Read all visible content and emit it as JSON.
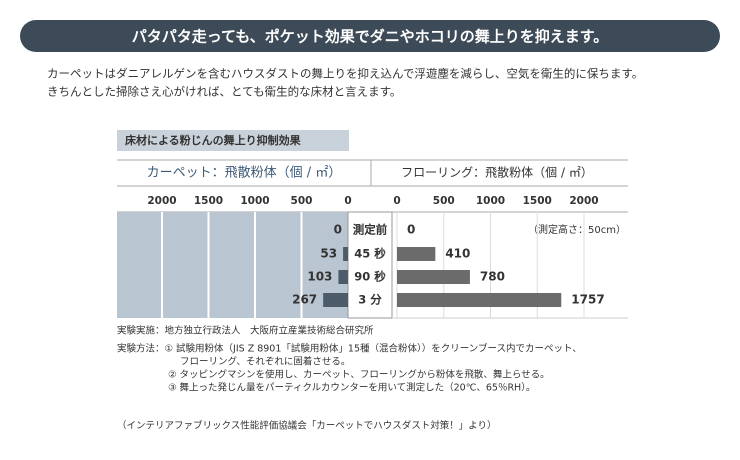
{
  "banner": "パタパタ走っても、ポケット効果でダニやホコリの舞上りを抑えます。",
  "intro": [
    "カーペットはダニアレルゲンを含むハウスダストの舞上りを抑え込んで浮遊塵を減らし、空気を衛生的に保ちます。",
    "きちんとした掃除さえ心がければ、とても衛生的な床材と言えます。"
  ],
  "chart": {
    "title": "床材による粉じんの舞上り抑制効果",
    "left_label": "カーペット：飛散粉体（個 / ㎡）",
    "right_label": "フローリング：飛散粉体（個 / ㎡）",
    "xlim": [
      0,
      2000
    ],
    "left_ticks": [
      2000,
      1500,
      1000,
      500,
      0
    ],
    "right_ticks": [
      0,
      500,
      1000,
      1500,
      2000
    ],
    "categories": [
      "測定前",
      "45 秒",
      "90 秒",
      "3 分"
    ],
    "carpet": {
      "color": "#4b5b69",
      "values": [
        0,
        53,
        103,
        267
      ]
    },
    "flooring": {
      "color": "#6b6b6b",
      "values": [
        0,
        410,
        780,
        1757
      ]
    },
    "note": "（測定高さ：50cm）"
  },
  "notes": [
    "実験実施：地方独立行政法人　大阪府立産業技術総合研究所",
    "実験方法：① 試験用粉体（JIS Z 8901「試験用粉体」15種（混合粉体））をクリーンブース内でカーペット、",
    "フローリング、それぞれに固着させる。",
    "② タッピングマシンを使用し、カーペット、フローリングから粉体を飛散、舞上らせる。",
    "③ 舞上った発じん量をパーティクルカウンターを用いて測定した（20℃、65％RH）。"
  ],
  "source": "（インテリアファブリックス性能評価協議会「カーペットでハウスダスト対策！」より）"
}
